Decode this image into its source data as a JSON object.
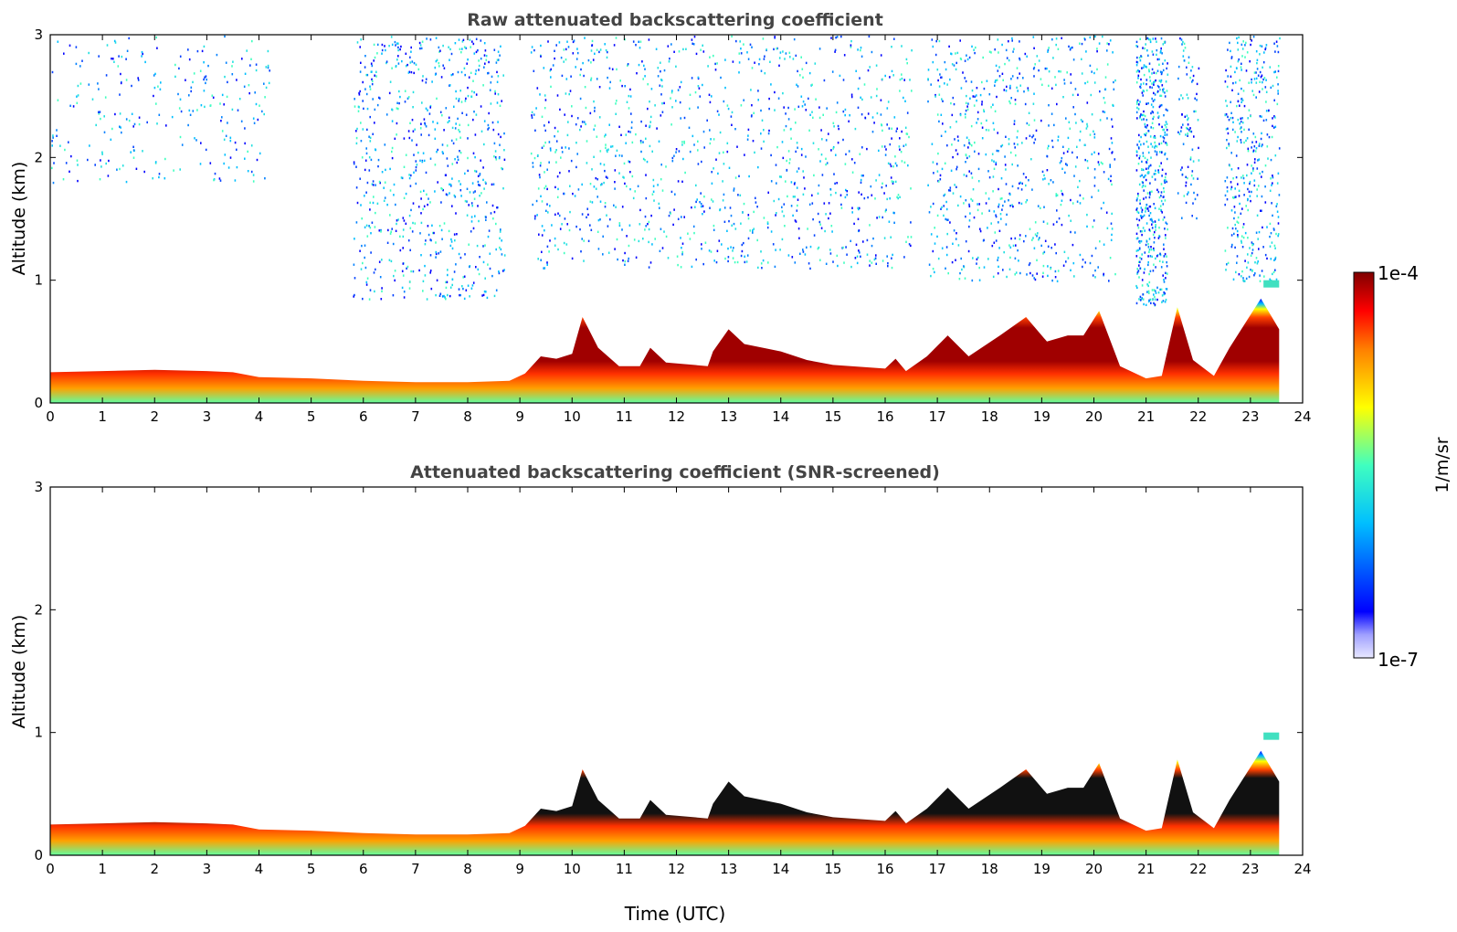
{
  "chart_data": [
    {
      "type": "heatmap",
      "title": "Raw attenuated backscattering coefficient",
      "xlabel": "",
      "ylabel": "Altitude (km)",
      "xlim": [
        0,
        24
      ],
      "ylim": [
        0,
        3
      ],
      "xticks": [
        "0",
        "1",
        "2",
        "3",
        "4",
        "5",
        "6",
        "7",
        "8",
        "9",
        "10",
        "11",
        "12",
        "13",
        "14",
        "15",
        "16",
        "17",
        "18",
        "19",
        "20",
        "21",
        "22",
        "23",
        "24"
      ],
      "yticks": [
        "0",
        "1",
        "2",
        "3"
      ],
      "boundary_layer_top_km": [
        [
          0,
          0.25
        ],
        [
          1,
          0.26
        ],
        [
          2,
          0.27
        ],
        [
          3,
          0.26
        ],
        [
          3.5,
          0.25
        ],
        [
          4,
          0.21
        ],
        [
          5,
          0.2
        ],
        [
          6,
          0.18
        ],
        [
          7,
          0.17
        ],
        [
          8,
          0.17
        ],
        [
          8.8,
          0.18
        ],
        [
          9.1,
          0.24
        ],
        [
          9.4,
          0.38
        ],
        [
          9.7,
          0.36
        ],
        [
          10,
          0.4
        ],
        [
          10.2,
          0.7
        ],
        [
          10.5,
          0.45
        ],
        [
          10.9,
          0.3
        ],
        [
          11.3,
          0.3
        ],
        [
          11.5,
          0.45
        ],
        [
          11.8,
          0.33
        ],
        [
          12.6,
          0.3
        ],
        [
          12.7,
          0.42
        ],
        [
          13,
          0.6
        ],
        [
          13.3,
          0.48
        ],
        [
          14,
          0.42
        ],
        [
          14.5,
          0.35
        ],
        [
          15,
          0.31
        ],
        [
          16,
          0.28
        ],
        [
          16.2,
          0.36
        ],
        [
          16.4,
          0.26
        ],
        [
          16.8,
          0.38
        ],
        [
          17.2,
          0.55
        ],
        [
          17.6,
          0.38
        ],
        [
          18.2,
          0.55
        ],
        [
          18.7,
          0.7
        ],
        [
          19.1,
          0.5
        ],
        [
          19.5,
          0.55
        ],
        [
          19.8,
          0.55
        ],
        [
          20.1,
          0.75
        ],
        [
          20.5,
          0.3
        ],
        [
          21,
          0.2
        ],
        [
          21.3,
          0.22
        ],
        [
          21.6,
          0.78
        ],
        [
          21.9,
          0.35
        ],
        [
          22.3,
          0.22
        ],
        [
          22.6,
          0.45
        ],
        [
          23.2,
          0.85
        ],
        [
          23.55,
          0.6
        ]
      ],
      "colorbar": {
        "label": "1/m/sr",
        "max_label": "1e-4",
        "min_label": "1e-7",
        "scale": "log"
      }
    },
    {
      "type": "heatmap",
      "title": "Attenuated backscattering coefficient (SNR-screened)",
      "xlabel": "Time (UTC)",
      "ylabel": "Altitude (km)",
      "xlim": [
        0,
        24
      ],
      "ylim": [
        0,
        3
      ],
      "xticks": [
        "0",
        "1",
        "2",
        "3",
        "4",
        "5",
        "6",
        "7",
        "8",
        "9",
        "10",
        "11",
        "12",
        "13",
        "14",
        "15",
        "16",
        "17",
        "18",
        "19",
        "20",
        "21",
        "22",
        "23",
        "24"
      ],
      "yticks": [
        "0",
        "1",
        "2",
        "3"
      ],
      "boundary_layer_top_km": [
        [
          0,
          0.25
        ],
        [
          1,
          0.26
        ],
        [
          2,
          0.27
        ],
        [
          3,
          0.26
        ],
        [
          3.5,
          0.25
        ],
        [
          4,
          0.21
        ],
        [
          5,
          0.2
        ],
        [
          6,
          0.18
        ],
        [
          7,
          0.17
        ],
        [
          8,
          0.17
        ],
        [
          8.8,
          0.18
        ],
        [
          9.1,
          0.24
        ],
        [
          9.4,
          0.38
        ],
        [
          9.7,
          0.36
        ],
        [
          10,
          0.4
        ],
        [
          10.2,
          0.7
        ],
        [
          10.5,
          0.45
        ],
        [
          10.9,
          0.3
        ],
        [
          11.3,
          0.3
        ],
        [
          11.5,
          0.45
        ],
        [
          11.8,
          0.33
        ],
        [
          12.6,
          0.3
        ],
        [
          12.7,
          0.42
        ],
        [
          13,
          0.6
        ],
        [
          13.3,
          0.48
        ],
        [
          14,
          0.42
        ],
        [
          14.5,
          0.35
        ],
        [
          15,
          0.31
        ],
        [
          16,
          0.28
        ],
        [
          16.2,
          0.36
        ],
        [
          16.4,
          0.26
        ],
        [
          16.8,
          0.38
        ],
        [
          17.2,
          0.55
        ],
        [
          17.6,
          0.38
        ],
        [
          18.2,
          0.55
        ],
        [
          18.7,
          0.7
        ],
        [
          19.1,
          0.5
        ],
        [
          19.5,
          0.55
        ],
        [
          19.8,
          0.55
        ],
        [
          20.1,
          0.75
        ],
        [
          20.5,
          0.3
        ],
        [
          21,
          0.2
        ],
        [
          21.3,
          0.22
        ],
        [
          21.6,
          0.78
        ],
        [
          21.9,
          0.35
        ],
        [
          22.3,
          0.22
        ],
        [
          22.6,
          0.45
        ],
        [
          23.2,
          0.85
        ],
        [
          23.55,
          0.6
        ]
      ],
      "colorbar": {
        "label": "1/m/sr",
        "max_label": "1e-4",
        "min_label": "1e-7",
        "scale": "log"
      }
    }
  ],
  "colors": {
    "jet_stops": [
      "#00007f",
      "#0000ff",
      "#00bfff",
      "#40ffbf",
      "#ffff00",
      "#ff8000",
      "#ff0000",
      "#7f0000"
    ],
    "title_text": "#444444",
    "screened_core": "#111111"
  }
}
